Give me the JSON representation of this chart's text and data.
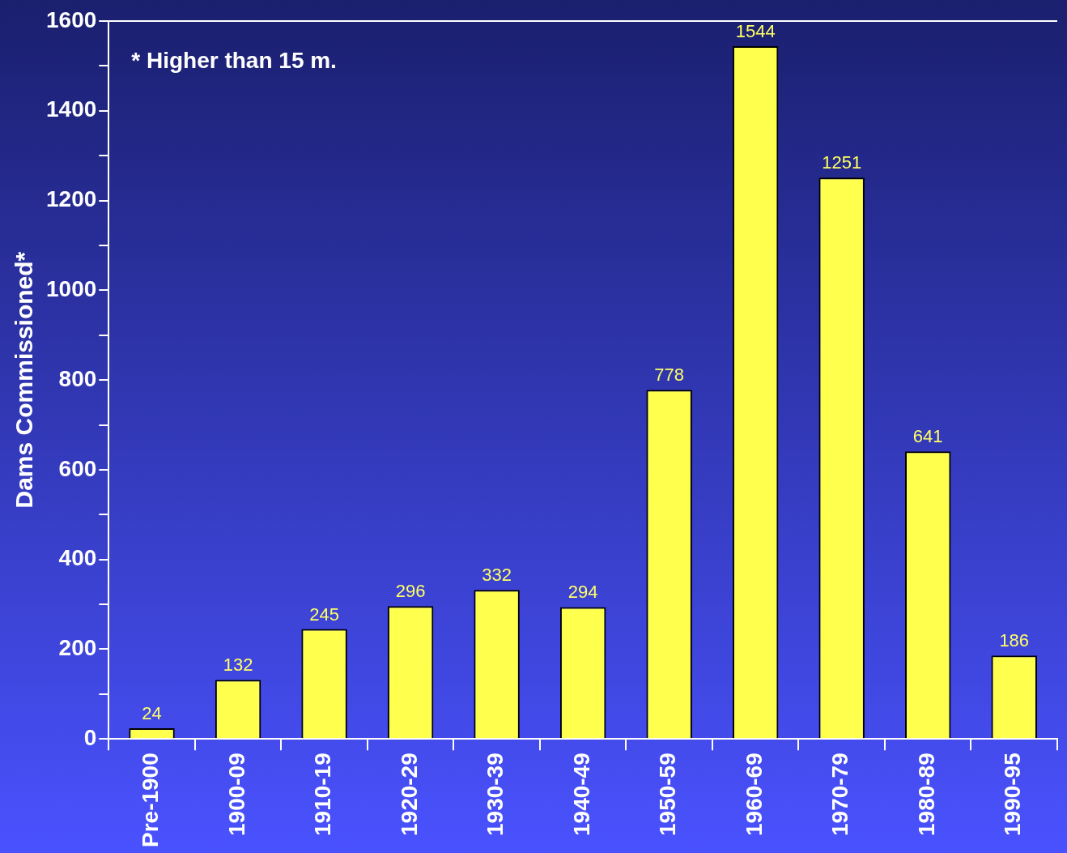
{
  "chart_data": {
    "type": "bar",
    "ylabel": "Dams Commissioned*",
    "annotations": [
      "* Higher than 15 m."
    ],
    "categories": [
      "Pre-1900",
      "1900-09",
      "1910-19",
      "1920-29",
      "1930-39",
      "1940-49",
      "1950-59",
      "1960-69",
      "1970-79",
      "1980-89",
      "1990-95"
    ],
    "values": [
      24,
      132,
      245,
      296,
      332,
      294,
      778,
      1544,
      1251,
      641,
      186
    ],
    "color": "#ffff4d",
    "data_labels": true,
    "legend": false,
    "grid": false,
    "ylim": [
      0,
      1600
    ],
    "yticks": [
      0,
      {
        "value": 100,
        "label": null
      },
      200,
      {
        "value": 300,
        "label": null
      },
      400,
      {
        "value": 500,
        "label": null
      },
      600,
      {
        "value": 700,
        "label": null
      },
      800,
      {
        "value": 900,
        "label": null
      },
      1000,
      {
        "value": 1100,
        "label": null
      },
      1200,
      {
        "value": 1300,
        "label": null
      },
      1400,
      {
        "value": 1500,
        "label": null
      },
      1600
    ]
  }
}
